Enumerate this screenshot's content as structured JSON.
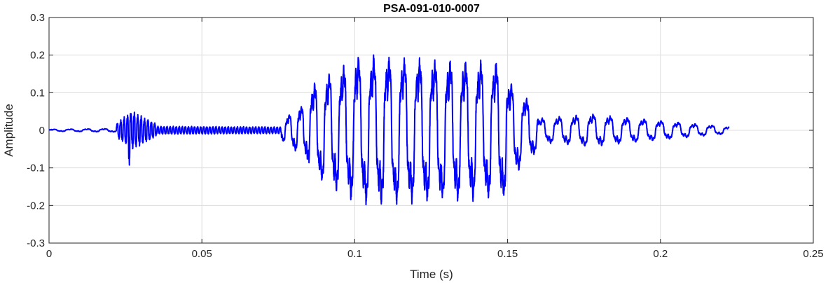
{
  "chart_data": {
    "type": "line",
    "title": "PSA-091-010-0007",
    "xlabel": "Time (s)",
    "ylabel": "Amplitude",
    "xlim": [
      0,
      0.25
    ],
    "ylim": [
      -0.3,
      0.3
    ],
    "x_ticks": [
      "0",
      "0.05",
      "0.1",
      "0.15",
      "0.2",
      "0.25"
    ],
    "y_ticks": [
      "-0.3",
      "-0.2",
      "-0.1",
      "0",
      "0.1",
      "0.2",
      "0.3"
    ],
    "grid": true,
    "line_color": "#0000ff",
    "series": [
      {
        "name": "",
        "segments": [
          {
            "t_start": 0.0,
            "t_end": 0.022,
            "freq_hz": 180,
            "amp_start": 0.003,
            "amp_end": 0.005
          },
          {
            "t_start": 0.022,
            "t_end": 0.026,
            "freq_hz": 900,
            "amp_start": 0.02,
            "amp_end": 0.05
          },
          {
            "t_start": 0.026,
            "t_end": 0.0265,
            "freq_hz": 900,
            "amp_start": 0.105,
            "amp_end": 0.105
          },
          {
            "t_start": 0.0265,
            "t_end": 0.035,
            "freq_hz": 900,
            "amp_start": 0.06,
            "amp_end": 0.02
          },
          {
            "t_start": 0.035,
            "t_end": 0.076,
            "freq_hz": 1000,
            "amp_start": 0.012,
            "amp_end": 0.01
          },
          {
            "t_start": 0.076,
            "t_end": 0.085,
            "freq_hz": 250,
            "amp_start": 0.03,
            "amp_end": 0.09
          },
          {
            "t_start": 0.085,
            "t_end": 0.1,
            "freq_hz": 210,
            "amp_start": 0.13,
            "amp_end": 0.21
          },
          {
            "t_start": 0.1,
            "t_end": 0.15,
            "freq_hz": 200,
            "amp_start": 0.22,
            "amp_end": 0.2
          },
          {
            "t_start": 0.15,
            "t_end": 0.16,
            "freq_hz": 200,
            "amp_start": 0.15,
            "amp_end": 0.06
          },
          {
            "t_start": 0.16,
            "t_end": 0.18,
            "freq_hz": 180,
            "amp_start": 0.035,
            "amp_end": 0.05
          },
          {
            "t_start": 0.18,
            "t_end": 0.2225,
            "freq_hz": 180,
            "amp_start": 0.045,
            "amp_end": 0.01
          }
        ],
        "peak_max": 0.228,
        "peak_min": -0.225
      }
    ]
  }
}
